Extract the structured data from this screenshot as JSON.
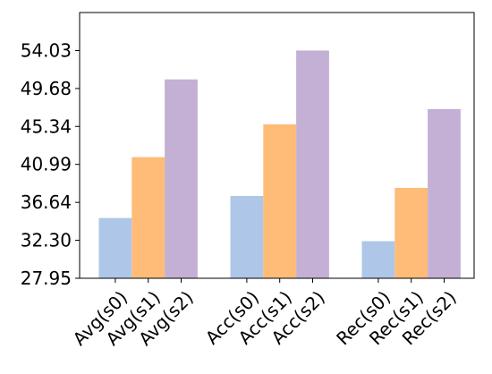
{
  "chart_data": {
    "type": "bar",
    "title": "",
    "xlabel": "",
    "ylabel": "",
    "grid": false,
    "legend": "none",
    "ylim": [
      27.95,
      58.38
    ],
    "yticks": [
      "27.95",
      "32.30",
      "36.64",
      "40.99",
      "45.34",
      "49.68",
      "54.03"
    ],
    "categories": [
      "Avg(s0)",
      "Avg(s1)",
      "Avg(s2)",
      "Acc(s0)",
      "Acc(s1)",
      "Acc(s2)",
      "Rec(s0)",
      "Rec(s1)",
      "Rec(s2)"
    ],
    "groups": [
      {
        "values": [
          34.85,
          41.82,
          50.72
        ],
        "labels": [
          "Avg(s0)",
          "Avg(s1)",
          "Avg(s2)"
        ]
      },
      {
        "values": [
          37.38,
          45.58,
          54.03
        ],
        "labels": [
          "Acc(s0)",
          "Acc(s1)",
          "Acc(s2)"
        ]
      },
      {
        "values": [
          32.2,
          38.3,
          47.33
        ],
        "labels": [
          "Rec(s0)",
          "Rec(s1)",
          "Rec(s2)"
        ]
      }
    ],
    "colors": [
      "#aec7e8",
      "#ffbb78",
      "#c5b0d5"
    ]
  }
}
